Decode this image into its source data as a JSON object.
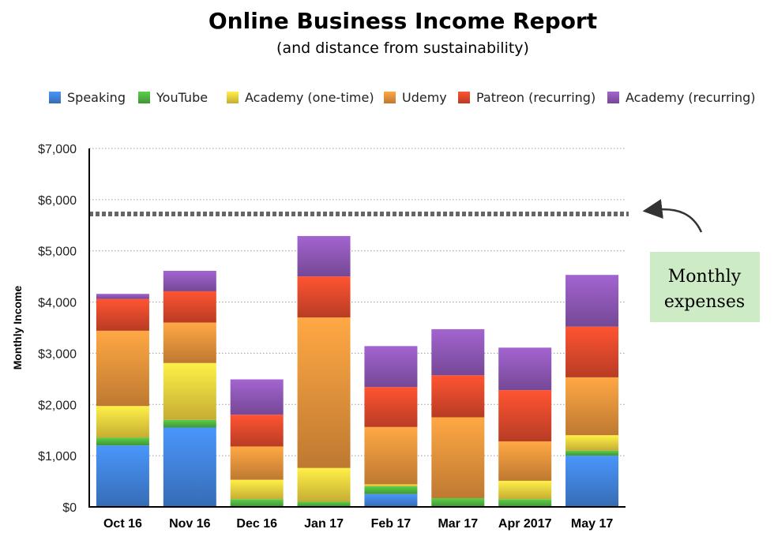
{
  "chart_data": {
    "type": "bar",
    "stacked": true,
    "title": "Online Business Income Report",
    "subtitle": "(and distance from sustainability)",
    "ylabel": "Monthly Income",
    "xlabel": "",
    "ylim": [
      0,
      7000
    ],
    "yticks": [
      0,
      1000,
      2000,
      3000,
      4000,
      5000,
      6000,
      7000
    ],
    "ytick_labels": [
      "$0",
      "$1,000",
      "$2,000",
      "$3,000",
      "$4,000",
      "$5,000",
      "$6,000",
      "$7,000"
    ],
    "grid": true,
    "legend_position": "top",
    "categories": [
      "Oct 16",
      "Nov 16",
      "Dec 16",
      "Jan 17",
      "Feb 17",
      "Mar 17",
      "Apr 2017",
      "May 17"
    ],
    "series": [
      {
        "name": "Speaking",
        "color": "#3F7FD5",
        "values": [
          1200,
          1550,
          0,
          0,
          250,
          0,
          0,
          1000
        ]
      },
      {
        "name": "YouTube",
        "color": "#4CAF3E",
        "values": [
          150,
          150,
          150,
          100,
          150,
          170,
          150,
          100
        ]
      },
      {
        "name": "Academy (one-time)",
        "color": "#E8CB3C",
        "values": [
          620,
          1110,
          380,
          660,
          40,
          0,
          360,
          300
        ]
      },
      {
        "name": "Udemy",
        "color": "#E08E3A",
        "values": [
          1470,
          790,
          650,
          2940,
          1120,
          1580,
          770,
          1130
        ]
      },
      {
        "name": "Patreon (recurring)",
        "color": "#D9472A",
        "values": [
          620,
          610,
          620,
          800,
          780,
          820,
          1000,
          990
        ]
      },
      {
        "name": "Academy (recurring)",
        "color": "#8A55B0",
        "values": [
          100,
          400,
          690,
          790,
          800,
          900,
          830,
          1010
        ]
      }
    ],
    "reference_line": {
      "value": 5720,
      "style": "dotted",
      "color": "#666666"
    },
    "annotation": {
      "text_lines": [
        "Monthly",
        "expenses"
      ],
      "background": "#CDEBC4"
    }
  }
}
